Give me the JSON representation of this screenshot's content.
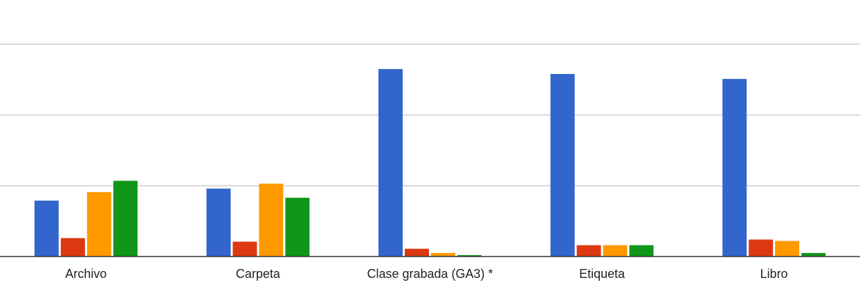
{
  "chart_data": {
    "type": "bar",
    "categories": [
      "Archivo",
      "Carpeta",
      "Clase grabada (GA3) *",
      "Etiqueta",
      "Libro"
    ],
    "series": [
      {
        "color": "#3366cc",
        "values": [
          0.79,
          0.96,
          2.65,
          2.58,
          2.51
        ]
      },
      {
        "color": "#dc3912",
        "values": [
          0.26,
          0.21,
          0.11,
          0.16,
          0.24
        ]
      },
      {
        "color": "#ff9900",
        "values": [
          0.91,
          1.03,
          0.05,
          0.16,
          0.22
        ]
      },
      {
        "color": "#109618",
        "values": [
          1.07,
          0.83,
          0.02,
          0.16,
          0.05
        ]
      }
    ],
    "ylim": [
      0,
      3
    ],
    "grid": true,
    "legend": "none",
    "title": "",
    "xlabel": "",
    "ylabel": ""
  }
}
